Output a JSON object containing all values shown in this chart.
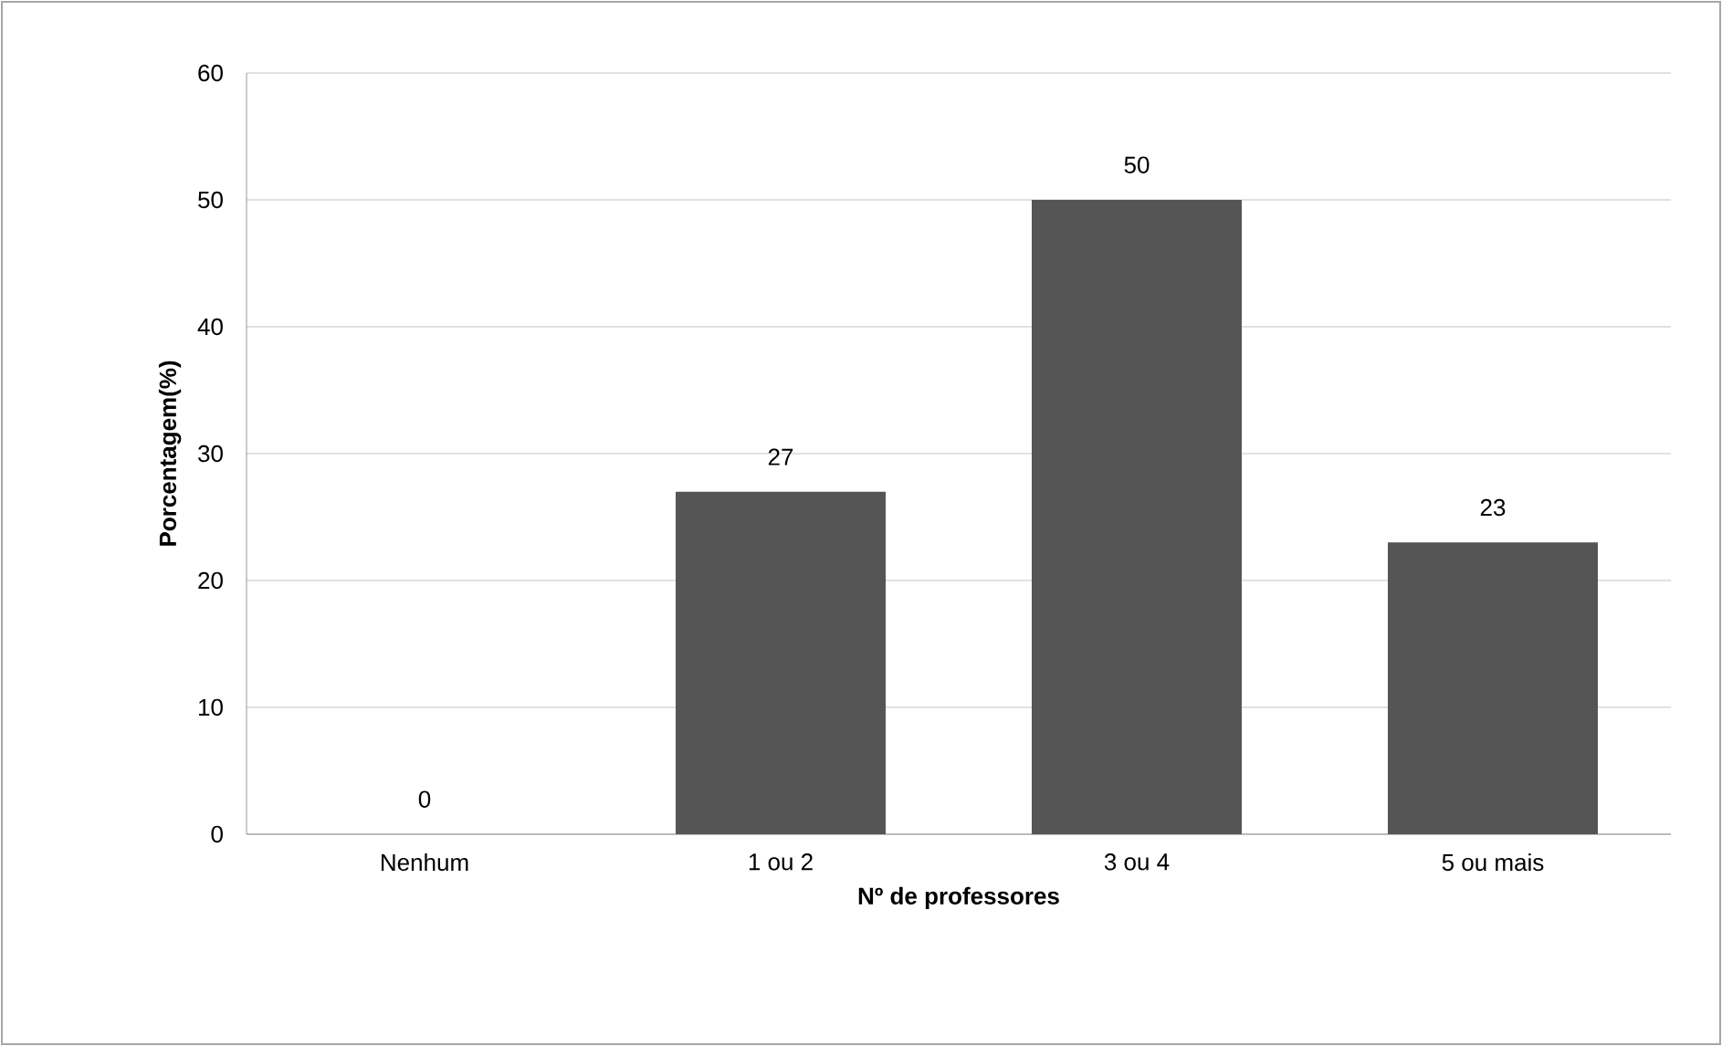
{
  "chart_data": {
    "type": "bar",
    "xlabel": "Nº de professores",
    "ylabel": "Porcentagem(%)",
    "categories": [
      "Nenhum",
      "1 ou 2",
      "3 ou 4",
      "5 ou mais"
    ],
    "values": [
      0,
      27,
      50,
      23
    ],
    "color": "#555555",
    "ylim": [
      0,
      60
    ],
    "yticks": [
      0,
      10,
      20,
      30,
      40,
      50,
      60
    ],
    "grid": "y",
    "data_labels": true
  }
}
